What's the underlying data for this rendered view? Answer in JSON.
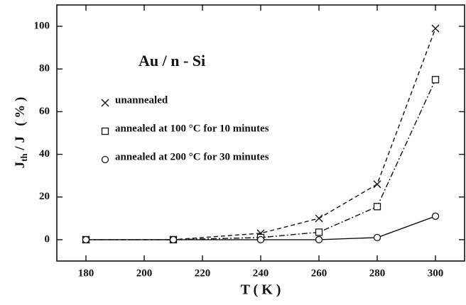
{
  "chart_data": {
    "type": "line",
    "annotation": "Au / n - Si",
    "xlabel": "T ( K )",
    "ylabel": {
      "main": "J",
      "sub": "th",
      "rest": " / J   ( % )"
    },
    "x": [
      180,
      210,
      240,
      260,
      280,
      300
    ],
    "series": [
      {
        "name": "unannealed",
        "color": "#111111",
        "marker": "x",
        "dash": "6,4",
        "values": [
          0,
          0,
          3,
          10,
          26,
          99
        ]
      },
      {
        "name": "annealed at 100 °C for 10 minutes",
        "color": "#111111",
        "marker": "square",
        "dash": "8,3,2,3",
        "values": [
          0,
          0,
          1,
          3.5,
          15.5,
          75
        ]
      },
      {
        "name": "annealed at 200 °C for 30 minutes",
        "color": "#111111",
        "marker": "circle",
        "dash": "none",
        "values": [
          0,
          0,
          0,
          0,
          1,
          11
        ]
      }
    ],
    "xlim": [
      170,
      310
    ],
    "xticks": [
      180,
      200,
      220,
      240,
      260,
      280,
      300
    ],
    "ylim": [
      -10,
      110
    ],
    "yticks": [
      0,
      20,
      40,
      60,
      80,
      100
    ],
    "grid": false
  }
}
